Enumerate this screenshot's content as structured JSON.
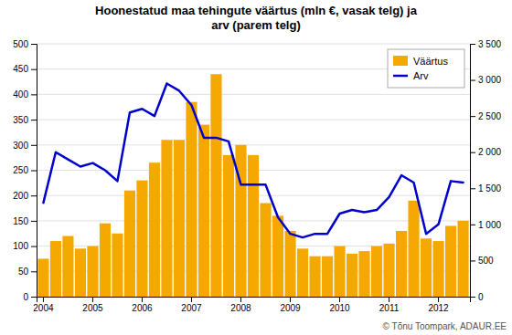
{
  "chart_data": {
    "type": "bar",
    "title": "Hoonestatud maa tehingute väärtus (mln €, vasak telg) ja\narv (parem telg)",
    "annotation": "© Tõnu Toompark, ADAUR.EE",
    "categories": [
      "2004",
      null,
      null,
      null,
      "2005",
      null,
      null,
      null,
      "2006",
      null,
      null,
      null,
      "2007",
      null,
      null,
      null,
      "2008",
      null,
      null,
      null,
      "2009",
      null,
      null,
      null,
      "2010",
      null,
      null,
      null,
      "2011",
      null,
      null,
      null,
      "2012",
      null,
      null
    ],
    "series": [
      {
        "name": "Väärtus",
        "type": "bar",
        "color": "#F5A800",
        "values": [
          75,
          110,
          120,
          95,
          100,
          145,
          125,
          210,
          230,
          265,
          310,
          310,
          385,
          340,
          440,
          280,
          300,
          280,
          185,
          160,
          130,
          95,
          80,
          80,
          100,
          85,
          90,
          100,
          105,
          130,
          190,
          115,
          110,
          140,
          150
        ]
      },
      {
        "name": "Arv",
        "type": "line",
        "color": "#0000CC",
        "axis": "y2",
        "values": [
          1300,
          2000,
          1900,
          1800,
          1850,
          1750,
          1600,
          2550,
          2600,
          2500,
          2950,
          2850,
          2650,
          2200,
          2200,
          2150,
          1550,
          1550,
          1550,
          1100,
          870,
          820,
          870,
          870,
          1150,
          1200,
          1170,
          1200,
          1380,
          1680,
          1580,
          870,
          1000,
          1600,
          1580
        ]
      }
    ],
    "ylim": [
      0,
      500
    ],
    "yticks": [
      0,
      50,
      100,
      150,
      200,
      250,
      300,
      350,
      400,
      450,
      500
    ],
    "y2lim": [
      0,
      3500
    ],
    "y2ticks": [
      0,
      500,
      {
        "value": 1000,
        "label": "1 000"
      },
      {
        "value": 1500,
        "label": "1 500"
      },
      {
        "value": 2000,
        "label": "2 000"
      },
      {
        "value": 2500,
        "label": "2 500"
      },
      {
        "value": 3000,
        "label": "3 000"
      },
      {
        "value": 3500,
        "label": "3 500"
      }
    ],
    "grid": true,
    "legend": "upper right"
  }
}
